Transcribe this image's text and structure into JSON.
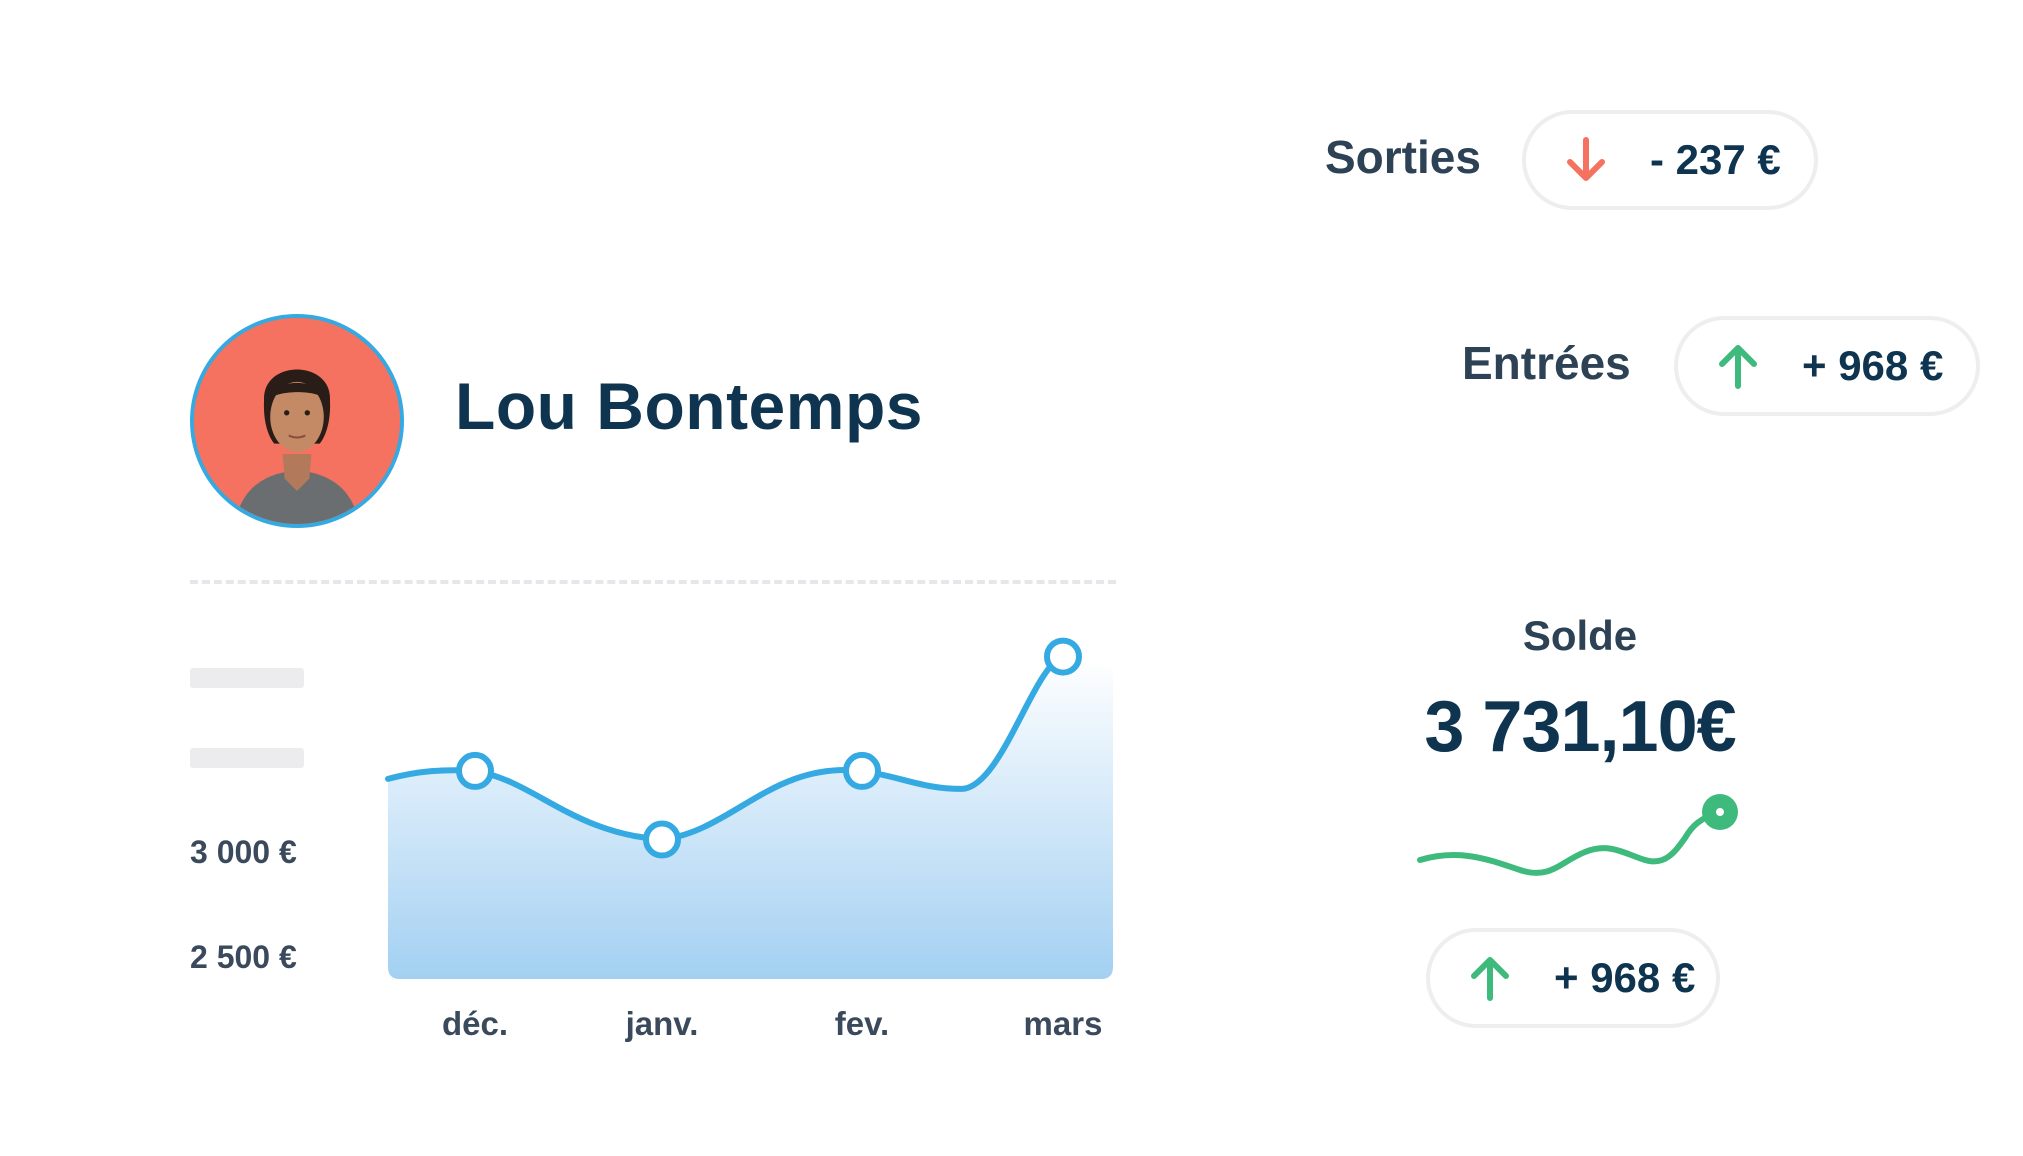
{
  "profile": {
    "name": "Lou Bontemps"
  },
  "colors": {
    "accent": "#35a9e1",
    "positive": "#3fba7d",
    "negative": "#f4725f",
    "text_dark": "#0f3450"
  },
  "stats": {
    "sorties": {
      "label": "Sorties",
      "value": "- 237 €",
      "icon": "arrow-down-icon"
    },
    "entrees": {
      "label": "Entrées",
      "value": "+ 968 €",
      "icon": "arrow-up-icon"
    },
    "solde": {
      "label": "Solde",
      "value": "3 731,10€",
      "change": "+ 968 €",
      "change_icon": "arrow-up-icon"
    }
  },
  "chart_data": {
    "type": "area",
    "categories": [
      "déc.",
      "janv.",
      "fev.",
      "mars"
    ],
    "values": [
      3330,
      3030,
      3330,
      3830
    ],
    "y_ticks": [
      "3 000 €",
      "2 500 €"
    ],
    "ylim": [
      2420,
      3920
    ],
    "grid": false
  }
}
